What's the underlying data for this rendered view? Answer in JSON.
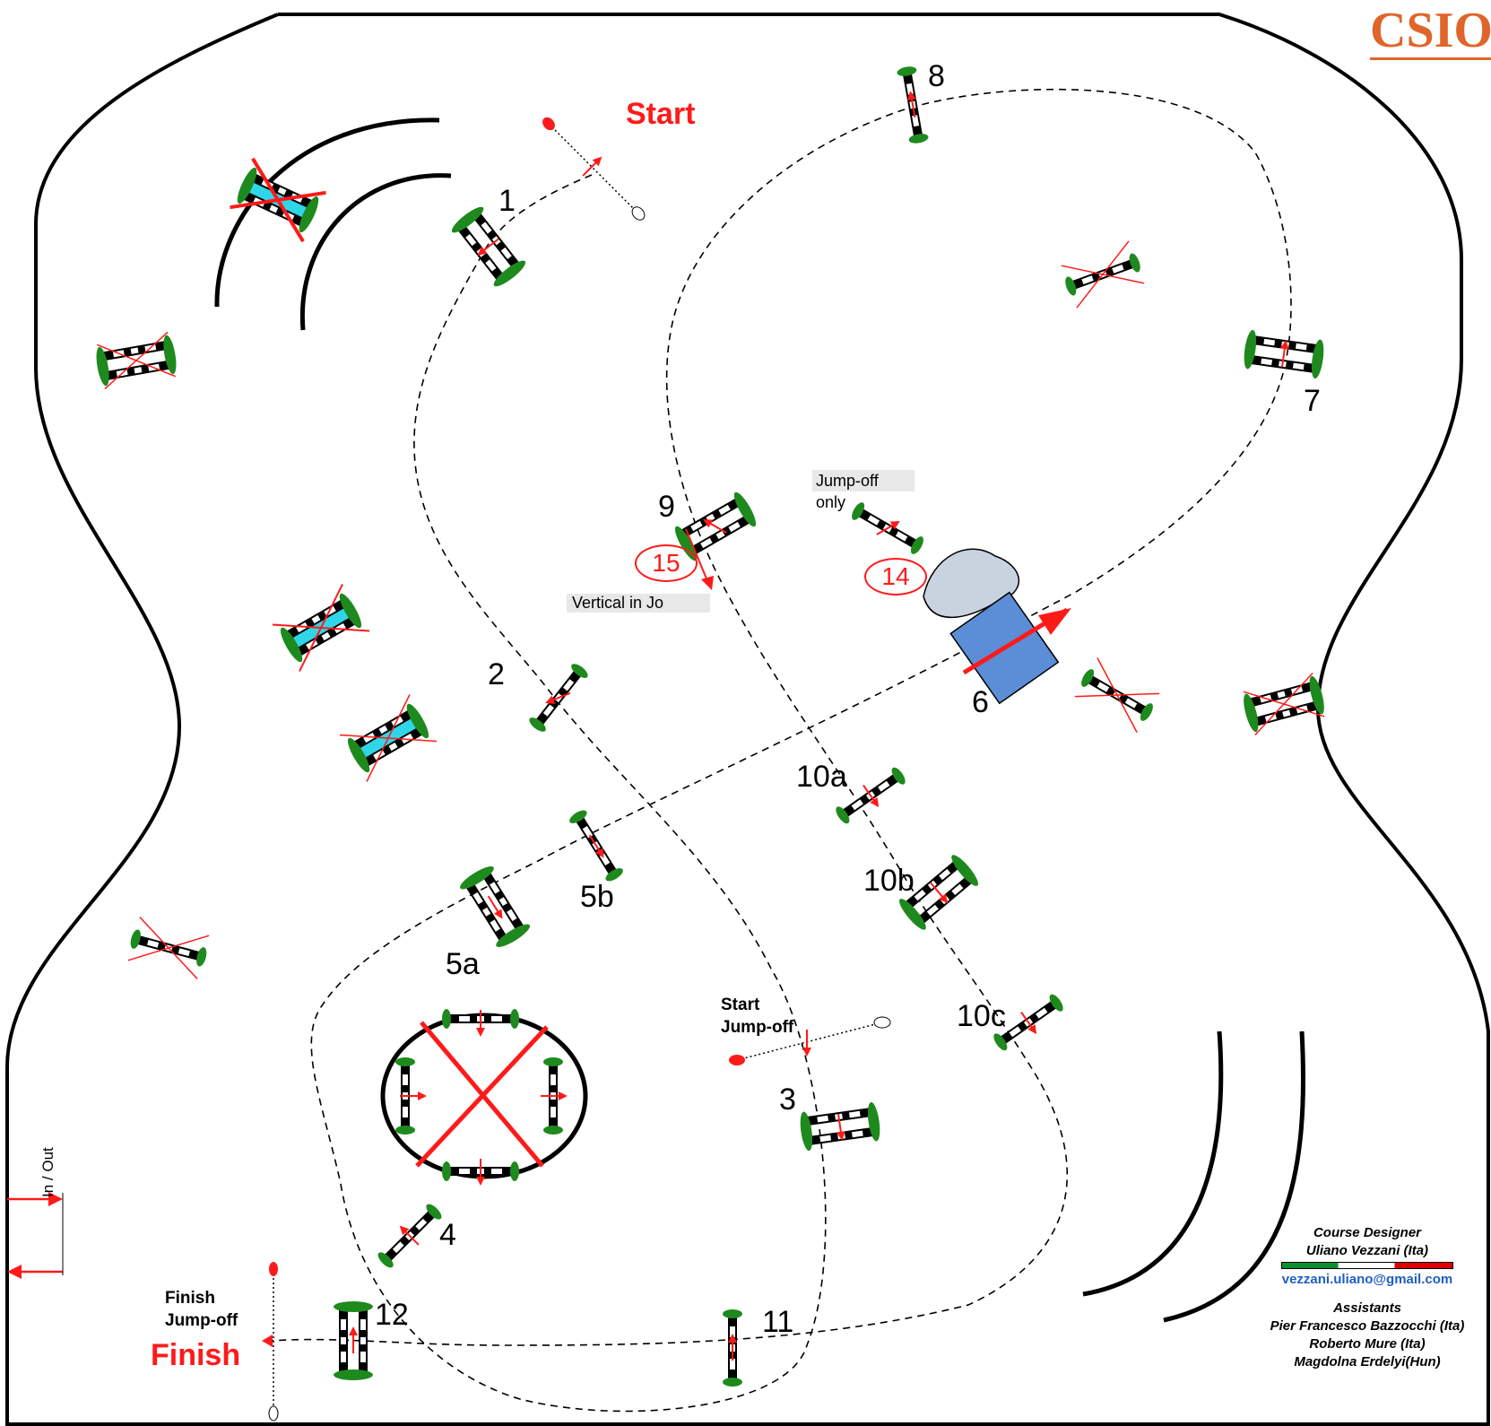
{
  "header": {
    "brand": "CSIO"
  },
  "labels": {
    "start": "Start",
    "finish": "Finish",
    "finish_jumpoff": [
      "Finish",
      "Jump-off"
    ],
    "start_jumpoff": [
      "Start",
      "Jump-off"
    ],
    "jumpoff_only": [
      "Jump-off",
      "only"
    ],
    "vertical_in_jo": "Vertical in Jo",
    "in_out": "In / Out"
  },
  "fences": {
    "f1": "1",
    "f2": "2",
    "f3": "3",
    "f4": "4",
    "f5a": "5a",
    "f5b": "5b",
    "f6": "6",
    "f7": "7",
    "f8": "8",
    "f9": "9",
    "f10a": "10a",
    "f10b": "10b",
    "f10c": "10c",
    "f11": "11",
    "f12": "12"
  },
  "jumpoff_numbers": {
    "j14": "14",
    "j15": "15"
  },
  "credits": {
    "designer_title": "Course Designer",
    "designer_name": "Uliano Vezzani (Ita)",
    "email": "vezzani.uliano@gmail.com",
    "assistants_title": "Assistants",
    "assistant_1": "Pier Francesco Bazzocchi (Ita)",
    "assistant_2": "Roberto Mure (Ita)",
    "assistant_3": "Magdolna Erdelyi(Hun)"
  },
  "colors": {
    "arena_border": "#000000",
    "course_line": "#000000",
    "red_marker": "#ff1a1a",
    "fence_green": "#1e8a1e",
    "water": "#5b8ed6",
    "pond": "#c9d3e0",
    "cyan_fence": "#2fd6e8",
    "brand": "#e0652a"
  }
}
